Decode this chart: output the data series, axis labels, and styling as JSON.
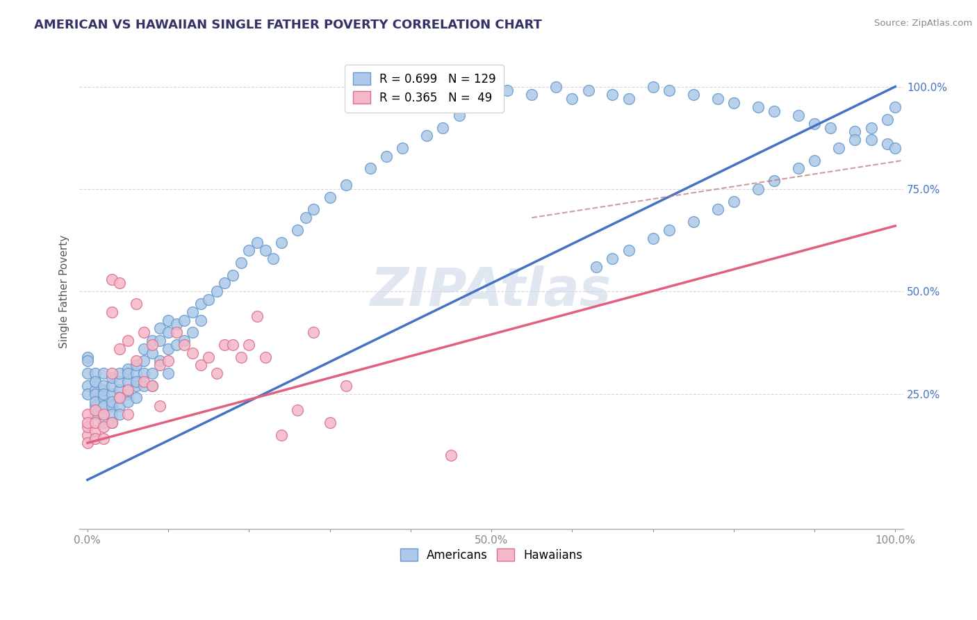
{
  "title": "AMERICAN VS HAWAIIAN SINGLE FATHER POVERTY CORRELATION CHART",
  "source": "Source: ZipAtlas.com",
  "ylabel": "Single Father Poverty",
  "xlim": [
    -0.01,
    1.01
  ],
  "ylim": [
    -0.08,
    1.08
  ],
  "xticks": [
    0,
    0.1,
    0.2,
    0.3,
    0.4,
    0.5,
    0.6,
    0.7,
    0.8,
    0.9,
    1.0
  ],
  "yticks": [
    0.25,
    0.5,
    0.75,
    1.0
  ],
  "xtick_labels": [
    "0.0%",
    "",
    "",
    "",
    "",
    "50.0%",
    "",
    "",
    "",
    "",
    "100.0%"
  ],
  "ytick_labels": [
    "25.0%",
    "50.0%",
    "75.0%",
    "100.0%"
  ],
  "american_color": "#adc8e8",
  "american_edge": "#6699cc",
  "hawaiian_color": "#f5b8c8",
  "hawaiian_edge": "#d97090",
  "american_R": 0.699,
  "american_N": 129,
  "hawaiian_R": 0.365,
  "hawaiian_N": 49,
  "american_line_color": "#4472c4",
  "hawaiian_line_color": "#e06080",
  "dashed_line_color": "#c07070",
  "ytick_color": "#4472c4",
  "xtick_color": "#888888",
  "watermark_text": "ZIPAtlas",
  "watermark_color": "#cdd8e8",
  "legend_label_american": "Americans",
  "legend_label_hawaiian": "Hawaiians",
  "american_line_x": [
    0.0,
    1.0
  ],
  "american_line_y": [
    0.04,
    1.0
  ],
  "hawaiian_line_x": [
    0.0,
    1.0
  ],
  "hawaiian_line_y": [
    0.13,
    0.66
  ],
  "dashed_line_x": [
    0.55,
    1.01
  ],
  "dashed_line_y": [
    0.68,
    0.82
  ],
  "american_x": [
    0.0,
    0.0,
    0.0,
    0.0,
    0.0,
    0.01,
    0.01,
    0.01,
    0.01,
    0.01,
    0.01,
    0.01,
    0.01,
    0.02,
    0.02,
    0.02,
    0.02,
    0.02,
    0.02,
    0.02,
    0.02,
    0.02,
    0.03,
    0.03,
    0.03,
    0.03,
    0.03,
    0.03,
    0.03,
    0.04,
    0.04,
    0.04,
    0.04,
    0.04,
    0.04,
    0.05,
    0.05,
    0.05,
    0.05,
    0.05,
    0.06,
    0.06,
    0.06,
    0.06,
    0.06,
    0.07,
    0.07,
    0.07,
    0.07,
    0.08,
    0.08,
    0.08,
    0.08,
    0.09,
    0.09,
    0.09,
    0.1,
    0.1,
    0.1,
    0.1,
    0.11,
    0.11,
    0.12,
    0.12,
    0.13,
    0.13,
    0.14,
    0.14,
    0.15,
    0.16,
    0.17,
    0.18,
    0.19,
    0.2,
    0.21,
    0.22,
    0.23,
    0.24,
    0.26,
    0.27,
    0.28,
    0.3,
    0.32,
    0.35,
    0.37,
    0.39,
    0.42,
    0.44,
    0.46,
    0.47,
    0.5,
    0.52,
    0.55,
    0.58,
    0.6,
    0.62,
    0.65,
    0.67,
    0.7,
    0.72,
    0.75,
    0.78,
    0.8,
    0.83,
    0.85,
    0.88,
    0.9,
    0.92,
    0.95,
    0.97,
    0.99,
    1.0,
    0.63,
    0.65,
    0.67,
    0.7,
    0.72,
    0.75,
    0.78,
    0.8,
    0.83,
    0.85,
    0.88,
    0.9,
    0.93,
    0.95,
    0.97,
    0.99,
    1.0
  ],
  "american_y": [
    0.34,
    0.3,
    0.27,
    0.25,
    0.33,
    0.26,
    0.28,
    0.25,
    0.22,
    0.2,
    0.3,
    0.28,
    0.23,
    0.22,
    0.24,
    0.26,
    0.2,
    0.27,
    0.18,
    0.3,
    0.25,
    0.22,
    0.22,
    0.25,
    0.27,
    0.29,
    0.2,
    0.18,
    0.23,
    0.26,
    0.28,
    0.22,
    0.3,
    0.24,
    0.2,
    0.28,
    0.31,
    0.25,
    0.23,
    0.3,
    0.3,
    0.32,
    0.27,
    0.24,
    0.28,
    0.33,
    0.36,
    0.3,
    0.27,
    0.35,
    0.38,
    0.3,
    0.27,
    0.38,
    0.41,
    0.33,
    0.4,
    0.43,
    0.36,
    0.3,
    0.42,
    0.37,
    0.43,
    0.38,
    0.45,
    0.4,
    0.47,
    0.43,
    0.48,
    0.5,
    0.52,
    0.54,
    0.57,
    0.6,
    0.62,
    0.6,
    0.58,
    0.62,
    0.65,
    0.68,
    0.7,
    0.73,
    0.76,
    0.8,
    0.83,
    0.85,
    0.88,
    0.9,
    0.93,
    0.95,
    0.97,
    0.99,
    0.98,
    1.0,
    0.97,
    0.99,
    0.98,
    0.97,
    1.0,
    0.99,
    0.98,
    0.97,
    0.96,
    0.95,
    0.94,
    0.93,
    0.91,
    0.9,
    0.89,
    0.87,
    0.86,
    0.85,
    0.56,
    0.58,
    0.6,
    0.63,
    0.65,
    0.67,
    0.7,
    0.72,
    0.75,
    0.77,
    0.8,
    0.82,
    0.85,
    0.87,
    0.9,
    0.92,
    0.95
  ],
  "hawaiian_x": [
    0.0,
    0.0,
    0.0,
    0.0,
    0.0,
    0.01,
    0.01,
    0.01,
    0.01,
    0.02,
    0.02,
    0.02,
    0.03,
    0.03,
    0.03,
    0.03,
    0.04,
    0.04,
    0.04,
    0.05,
    0.05,
    0.05,
    0.06,
    0.06,
    0.07,
    0.07,
    0.08,
    0.08,
    0.09,
    0.09,
    0.1,
    0.11,
    0.12,
    0.13,
    0.14,
    0.15,
    0.16,
    0.17,
    0.18,
    0.19,
    0.2,
    0.21,
    0.22,
    0.24,
    0.26,
    0.28,
    0.3,
    0.32,
    0.45
  ],
  "hawaiian_y": [
    0.15,
    0.17,
    0.2,
    0.13,
    0.18,
    0.16,
    0.14,
    0.18,
    0.21,
    0.17,
    0.2,
    0.14,
    0.53,
    0.45,
    0.3,
    0.18,
    0.52,
    0.36,
    0.24,
    0.38,
    0.26,
    0.2,
    0.47,
    0.33,
    0.4,
    0.28,
    0.37,
    0.27,
    0.32,
    0.22,
    0.33,
    0.4,
    0.37,
    0.35,
    0.32,
    0.34,
    0.3,
    0.37,
    0.37,
    0.34,
    0.37,
    0.44,
    0.34,
    0.15,
    0.21,
    0.4,
    0.18,
    0.27,
    0.1
  ]
}
